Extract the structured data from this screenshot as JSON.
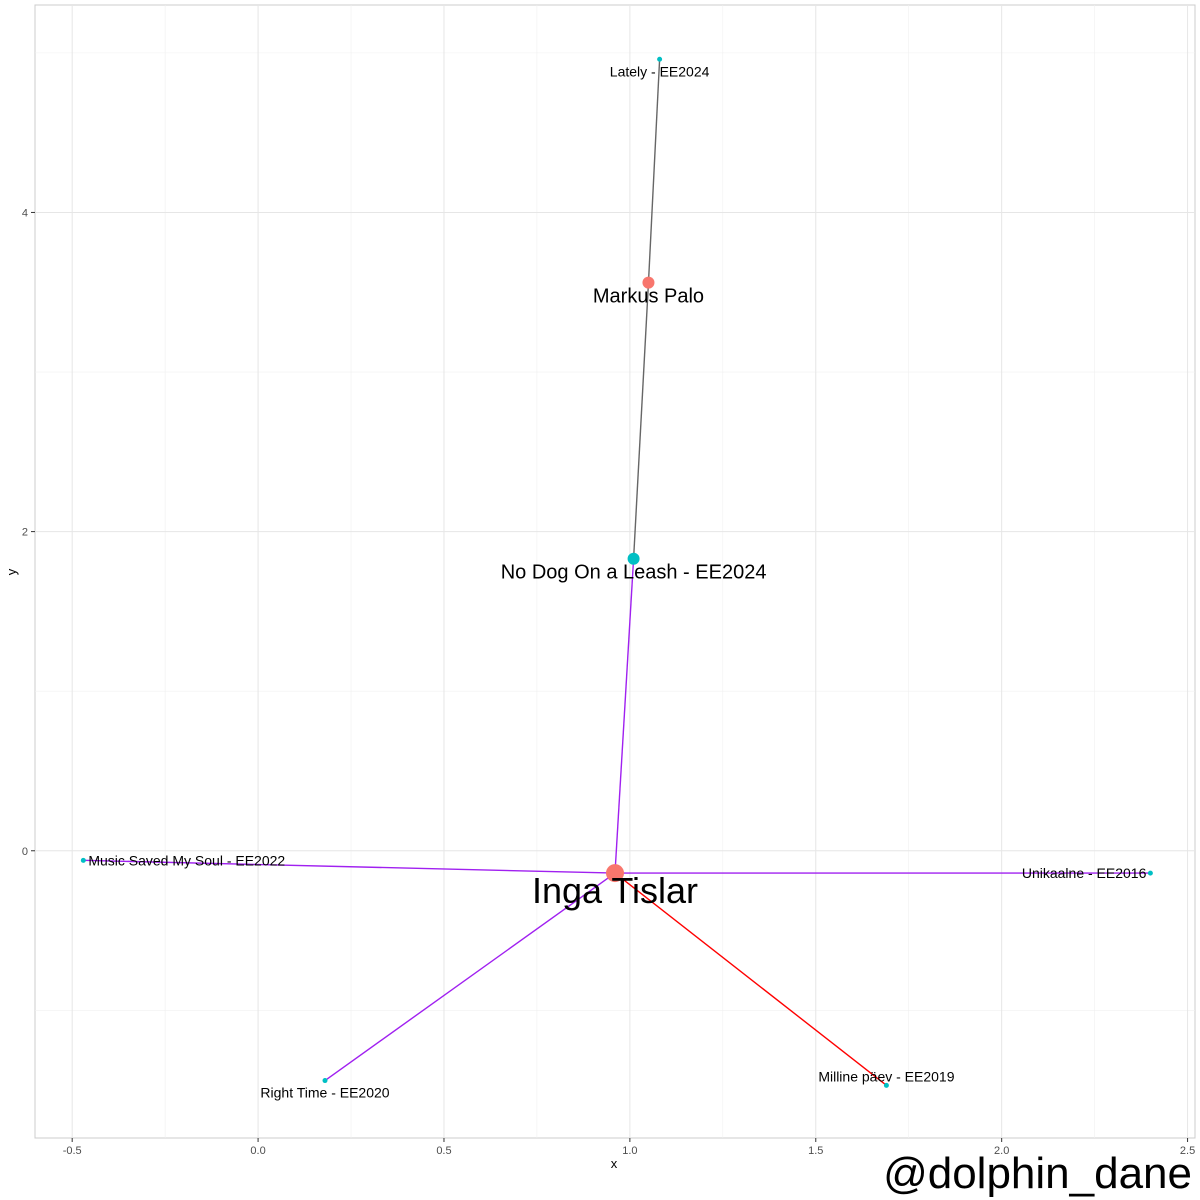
{
  "chart_data": {
    "type": "scatter",
    "xlabel": "x",
    "ylabel": "y",
    "xlim": [
      -0.6,
      2.52
    ],
    "ylim": [
      -1.8,
      5.3
    ],
    "xticks": [
      -0.5,
      0.0,
      0.5,
      1.0,
      1.5,
      2.0,
      2.5
    ],
    "xtick_labels": [
      "-0.5",
      "0.0",
      "0.5",
      "1.0",
      "1.5",
      "2.0",
      "2.5"
    ],
    "yticks": [
      0,
      2,
      4
    ],
    "ytick_labels": [
      "0",
      "2",
      "4"
    ],
    "grid": true,
    "colors": {
      "artist": "#F8766D",
      "song": "#00BFC4",
      "edge_purple": "#A020F0",
      "edge_red": "#FF0000",
      "edge_grey": "#666666"
    },
    "nodes": [
      {
        "id": "inga",
        "label": "Inga Tislar",
        "kind": "artist",
        "x": 0.96,
        "y": -0.14,
        "size": "large"
      },
      {
        "id": "markus",
        "label": "Markus Palo",
        "kind": "artist",
        "x": 1.05,
        "y": 3.56,
        "size": "medium"
      },
      {
        "id": "nodog",
        "label": "No Dog On a Leash - EE2024",
        "kind": "song",
        "x": 1.01,
        "y": 1.83,
        "size": "medium"
      },
      {
        "id": "lately",
        "label": "Lately - EE2024",
        "kind": "song",
        "x": 1.08,
        "y": 4.96,
        "size": "small"
      },
      {
        "id": "music",
        "label": "Music Saved My Soul - EE2022",
        "kind": "song",
        "x": -0.47,
        "y": -0.06,
        "size": "small"
      },
      {
        "id": "unik",
        "label": "Unikaalne - EE2016",
        "kind": "song",
        "x": 2.4,
        "y": -0.14,
        "size": "small"
      },
      {
        "id": "right",
        "label": "Right Time - EE2020",
        "kind": "song",
        "x": 0.18,
        "y": -1.44,
        "size": "small"
      },
      {
        "id": "milline",
        "label": "Milline päev - EE2019",
        "kind": "song",
        "x": 1.69,
        "y": -1.47,
        "size": "small"
      }
    ],
    "edges": [
      {
        "from": "markus",
        "to": "lately",
        "color": "edge_grey"
      },
      {
        "from": "markus",
        "to": "nodog",
        "color": "edge_grey"
      },
      {
        "from": "inga",
        "to": "nodog",
        "color": "edge_purple"
      },
      {
        "from": "inga",
        "to": "music",
        "color": "edge_purple"
      },
      {
        "from": "inga",
        "to": "unik",
        "color": "edge_purple"
      },
      {
        "from": "inga",
        "to": "right",
        "color": "edge_purple"
      },
      {
        "from": "inga",
        "to": "milline",
        "color": "edge_red"
      }
    ]
  },
  "watermark": "@dolphin_dane"
}
